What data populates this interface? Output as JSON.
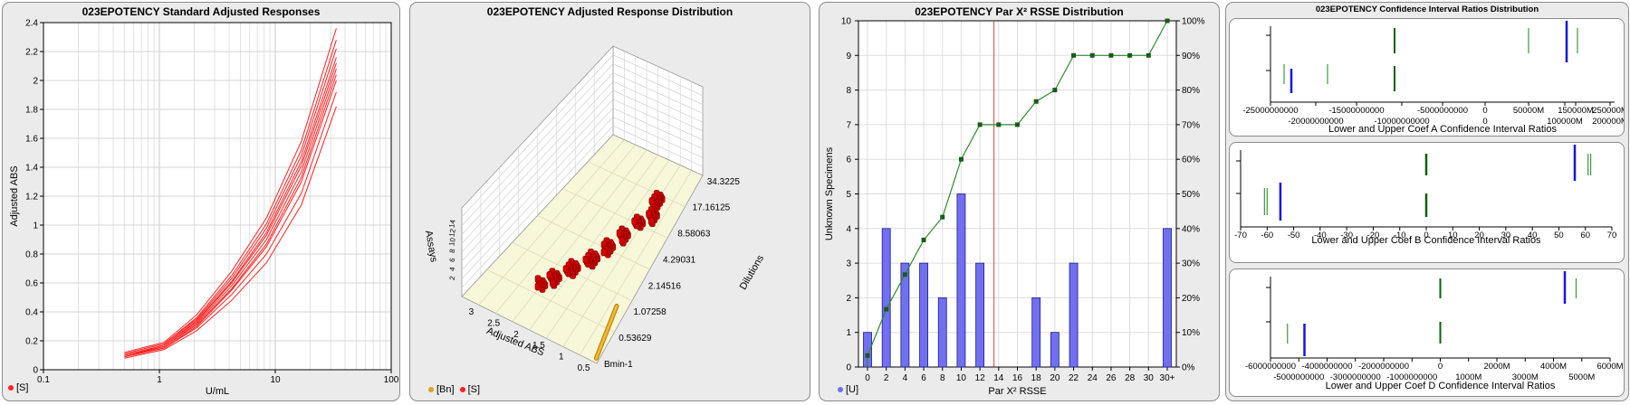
{
  "panels": {
    "std": {
      "title": "023EPOTENCY Standard Adjusted Responses"
    },
    "dist3d": {
      "title": "023EPOTENCY Adjusted Response Distribution"
    },
    "rsse": {
      "title": "023EPOTENCY Par X² RSSE Distribution"
    },
    "ci": {
      "title": "023EPOTENCY Confidence Interval Ratios Distribution"
    }
  },
  "legend": {
    "std_s": "[S]",
    "d3_bn": "[Bn]",
    "d3_s": "[S]",
    "rsse_u": "[U]"
  },
  "colors": {
    "std_curve": "#ff2020",
    "bar_blue": "#7070f0",
    "cum_green": "#2e8b2e",
    "red_line": "#e04040",
    "bn_orange": "#e0a020",
    "ci_blue": "#1515e0",
    "ci_green": "#3c9a3c",
    "ci_dark_green": "#0a600a"
  },
  "chart_data": [
    {
      "type": "line",
      "xlabel": "U/mL",
      "ylabel": "Adjusted ABS",
      "xscale": "log",
      "xlim": [
        0.1,
        100
      ],
      "ylim": [
        0,
        2.4
      ],
      "x_ticks": [
        "0.1",
        "1",
        "10",
        "100"
      ],
      "y_ticks": [
        "0",
        "0.2",
        "0.4",
        "0.6",
        "0.8",
        "1",
        "1.2",
        "1.4",
        "1.6",
        "1.8",
        "2",
        "2.2",
        "2.4"
      ],
      "x": [
        0.5,
        1.1,
        2.1,
        4.2,
        8.4,
        16.8,
        33.6
      ],
      "series": [
        {
          "values": [
            0.12,
            0.19,
            0.38,
            0.68,
            1.05,
            1.58,
            2.36
          ]
        },
        {
          "values": [
            0.11,
            0.18,
            0.36,
            0.65,
            1.01,
            1.52,
            2.28
          ]
        },
        {
          "values": [
            0.11,
            0.18,
            0.35,
            0.63,
            0.98,
            1.48,
            2.22
          ]
        },
        {
          "values": [
            0.1,
            0.17,
            0.34,
            0.61,
            0.95,
            1.44,
            2.16
          ]
        },
        {
          "values": [
            0.1,
            0.17,
            0.33,
            0.6,
            0.93,
            1.41,
            2.12
          ]
        },
        {
          "values": [
            0.1,
            0.16,
            0.32,
            0.58,
            0.9,
            1.37,
            2.08
          ]
        },
        {
          "values": [
            0.09,
            0.16,
            0.31,
            0.56,
            0.87,
            1.33,
            2.04
          ]
        },
        {
          "values": [
            0.09,
            0.15,
            0.3,
            0.55,
            0.85,
            1.3,
            2.0
          ]
        },
        {
          "values": [
            0.09,
            0.15,
            0.29,
            0.52,
            0.8,
            1.22,
            1.92
          ]
        },
        {
          "values": [
            0.08,
            0.14,
            0.27,
            0.48,
            0.74,
            1.14,
            1.82
          ]
        }
      ]
    },
    {
      "type": "bar",
      "xlabel": "Adjusted ABS",
      "ylabel": "Dilutions",
      "zlabel": "Assays",
      "x_ticks": [
        "0.5",
        "1",
        "1.5",
        "2",
        "2.5",
        "3"
      ],
      "dilution_ticks": [
        "Bmin-1",
        "0.53629",
        "1.07258",
        "2.14516",
        "4.29031",
        "8.58063",
        "17.16125",
        "34.3225"
      ],
      "assay_ticks": [
        "2",
        "4",
        "6",
        "8",
        "10",
        "12",
        "14"
      ]
    },
    {
      "type": "bar",
      "xlabel": "Par X² RSSE",
      "ylabel": "Unknown Specimens",
      "ylim": [
        0,
        10
      ],
      "y2lim": [
        0,
        100
      ],
      "categories": [
        "0",
        "2",
        "4",
        "6",
        "8",
        "10",
        "12",
        "14",
        "16",
        "18",
        "20",
        "22",
        "24",
        "26",
        "28",
        "30",
        "30+"
      ],
      "y_ticks": [
        "0",
        "1",
        "2",
        "3",
        "4",
        "5",
        "6",
        "7",
        "8",
        "9",
        "10"
      ],
      "y2_ticks": [
        "0%",
        "10%",
        "20%",
        "30%",
        "40%",
        "50%",
        "60%",
        "70%",
        "80%",
        "90%",
        "100%"
      ],
      "series": [
        {
          "name": "[U]",
          "values": [
            1,
            4,
            3,
            3,
            2,
            5,
            3,
            0,
            0,
            2,
            1,
            3,
            0,
            0,
            0,
            0,
            4
          ]
        }
      ],
      "cumulative_percent": [
        3.3,
        16.7,
        26.7,
        36.7,
        43.3,
        60,
        70,
        70,
        70,
        76.7,
        80,
        90,
        90,
        90,
        90,
        90,
        100
      ],
      "vline_x": 13.5
    },
    {
      "type": "scatter",
      "xlabel": "Lower and Upper Coef A Confidence Interval Ratios",
      "x_ticks_top": [
        "-25000000000",
        "-15000000000",
        "-5000000000",
        "0",
        "50000M",
        "150000M",
        "250000M"
      ],
      "x_ticks_bottom": [
        "-20000000000",
        "-10000000000",
        "0",
        "100000M",
        "200000M"
      ]
    },
    {
      "type": "scatter",
      "xlabel": "Lower and Upper Coef B Confidence Interval Ratios",
      "x_ticks": [
        "-70",
        "-60",
        "-50",
        "-40",
        "-30",
        "-20",
        "-10",
        "0",
        "10",
        "20",
        "30",
        "40",
        "50",
        "60",
        "70"
      ]
    },
    {
      "type": "scatter",
      "xlabel": "Lower and Upper Coef D Confidence Interval Ratios",
      "x_ticks_top": [
        "-6000000000",
        "-4000000000",
        "-2000000000",
        "0",
        "2000M",
        "4000M",
        "6000M"
      ],
      "x_ticks_bottom": [
        "-5000000000",
        "-3000000000",
        "-1000000000",
        "1000M",
        "3000M",
        "5000M"
      ]
    }
  ]
}
